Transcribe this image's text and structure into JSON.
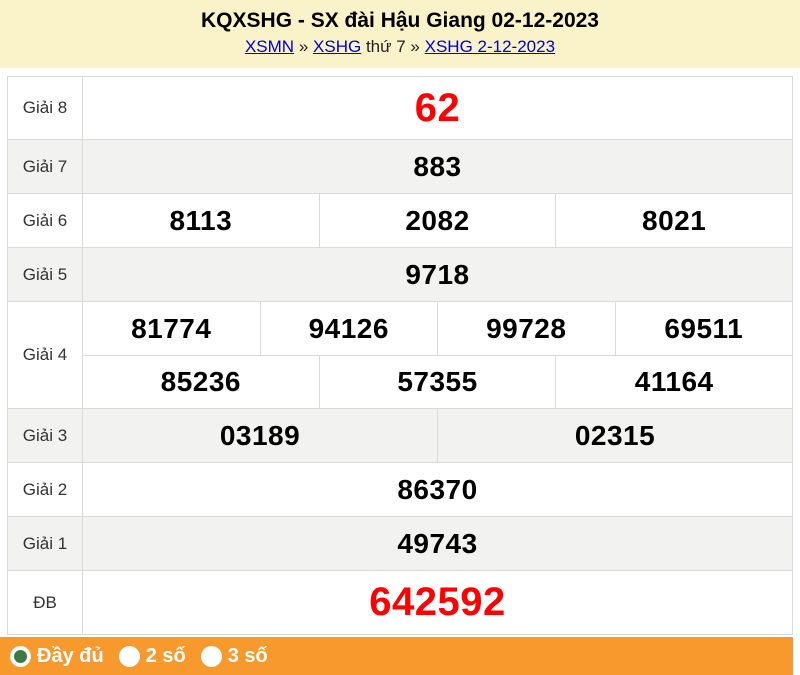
{
  "header": {
    "title": "KQXSHG - SX đài Hậu Giang 02-12-2023",
    "breadcrumb": {
      "xsmn_link": "XSMN",
      "sep1": "»",
      "xshg_link": "XSHG",
      "day_text": "thứ 7",
      "sep2": "»",
      "date_link": "XSHG 2-12-2023"
    }
  },
  "results": {
    "rows": [
      {
        "id": "giai-8",
        "label": "Giải 8",
        "bg": "white",
        "big": true,
        "groups": [
          [
            "62"
          ]
        ]
      },
      {
        "id": "giai-7",
        "label": "Giải 7",
        "bg": "gray",
        "big": false,
        "groups": [
          [
            "883"
          ]
        ]
      },
      {
        "id": "giai-6",
        "label": "Giải 6",
        "bg": "white",
        "big": false,
        "groups": [
          [
            "8113",
            "2082",
            "8021"
          ]
        ]
      },
      {
        "id": "giai-5",
        "label": "Giải 5",
        "bg": "gray",
        "big": false,
        "groups": [
          [
            "9718"
          ]
        ]
      },
      {
        "id": "giai-4",
        "label": "Giải 4",
        "bg": "white",
        "big": false,
        "groups": [
          [
            "81774",
            "94126",
            "99728",
            "69511"
          ],
          [
            "85236",
            "57355",
            "41164"
          ]
        ]
      },
      {
        "id": "giai-3",
        "label": "Giải 3",
        "bg": "gray",
        "big": false,
        "groups": [
          [
            "03189",
            "02315"
          ]
        ]
      },
      {
        "id": "giai-2",
        "label": "Giải 2",
        "bg": "white",
        "big": false,
        "groups": [
          [
            "86370"
          ]
        ]
      },
      {
        "id": "giai-1",
        "label": "Giải 1",
        "bg": "gray",
        "big": false,
        "groups": [
          [
            "49743"
          ]
        ]
      },
      {
        "id": "giai-db",
        "label": "ĐB",
        "bg": "white",
        "big": true,
        "groups": [
          [
            "642592"
          ]
        ]
      }
    ]
  },
  "footer": {
    "options": [
      {
        "id": "day-du",
        "label": "Đầy đủ",
        "selected": true
      },
      {
        "id": "2-so",
        "label": "2 số",
        "selected": false
      },
      {
        "id": "3-so",
        "label": "3 số",
        "selected": false
      }
    ]
  },
  "colors": {
    "header_bg": "#FAF2C8",
    "border": "#D9D9D9",
    "row_alt": "#F2F2F0",
    "accent_red": "#FF0000",
    "link_blue": "#0000CC",
    "bar_orange": "#F8992D",
    "radio_green": "#3F7A44"
  }
}
